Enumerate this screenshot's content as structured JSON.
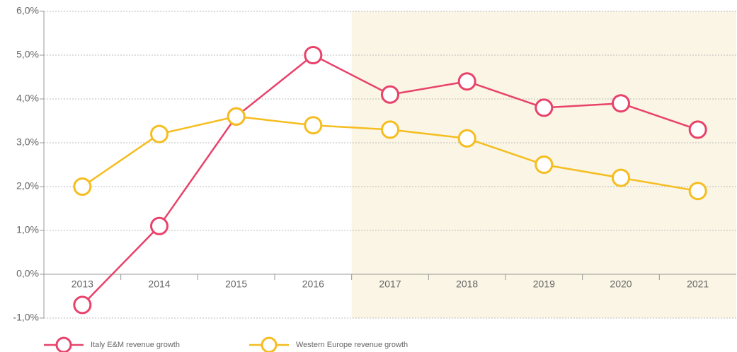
{
  "chart_data": {
    "type": "line",
    "categories": [
      "2013",
      "2014",
      "2015",
      "2016",
      "2017",
      "2018",
      "2019",
      "2020",
      "2021"
    ],
    "series": [
      {
        "name": "Italy E&M revenue growth",
        "color": "#e8426b",
        "values": [
          -0.7,
          1.1,
          3.6,
          5.0,
          4.1,
          4.4,
          3.8,
          3.9,
          3.3
        ]
      },
      {
        "name": "Western Europe revenue growth",
        "color": "#f5bd1f",
        "values": [
          2.0,
          3.2,
          3.6,
          3.4,
          3.3,
          3.1,
          2.5,
          2.2,
          1.9
        ]
      }
    ],
    "ylim": [
      -1,
      6
    ],
    "yticks": [
      {
        "value": -1,
        "label": "-1,0%"
      },
      {
        "value": 0,
        "label": "0,0%"
      },
      {
        "value": 1,
        "label": "1,0%"
      },
      {
        "value": 2,
        "label": "2,0%"
      },
      {
        "value": 3,
        "label": "3,0%"
      },
      {
        "value": 4,
        "label": "4,0%"
      },
      {
        "value": 5,
        "label": "5,0%"
      },
      {
        "value": 6,
        "label": "6,0%"
      }
    ],
    "grid": true
  }
}
